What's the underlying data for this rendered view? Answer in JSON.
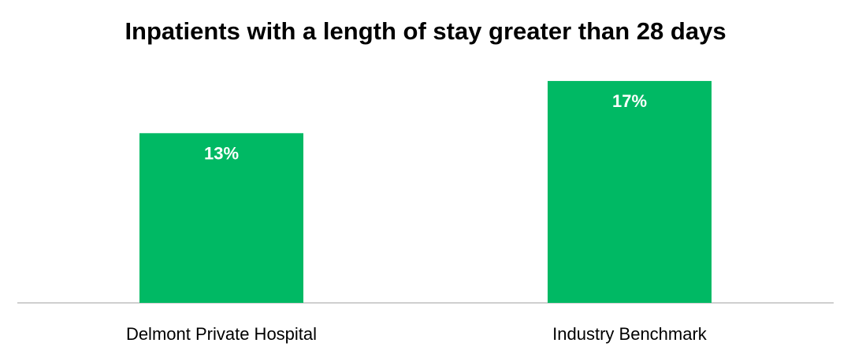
{
  "chart_data": {
    "type": "bar",
    "title": "Inpatients with a length of stay greater than 28 days",
    "categories": [
      "Delmont Private Hospital",
      "Industry Benchmark"
    ],
    "values": [
      13,
      17
    ],
    "value_labels": [
      "13%",
      "17%"
    ],
    "unit": "%",
    "xlabel": "",
    "ylabel": "",
    "ylim": [
      0,
      17.9
    ],
    "grid": false,
    "legend": "none",
    "bar_color": "#00B964"
  }
}
